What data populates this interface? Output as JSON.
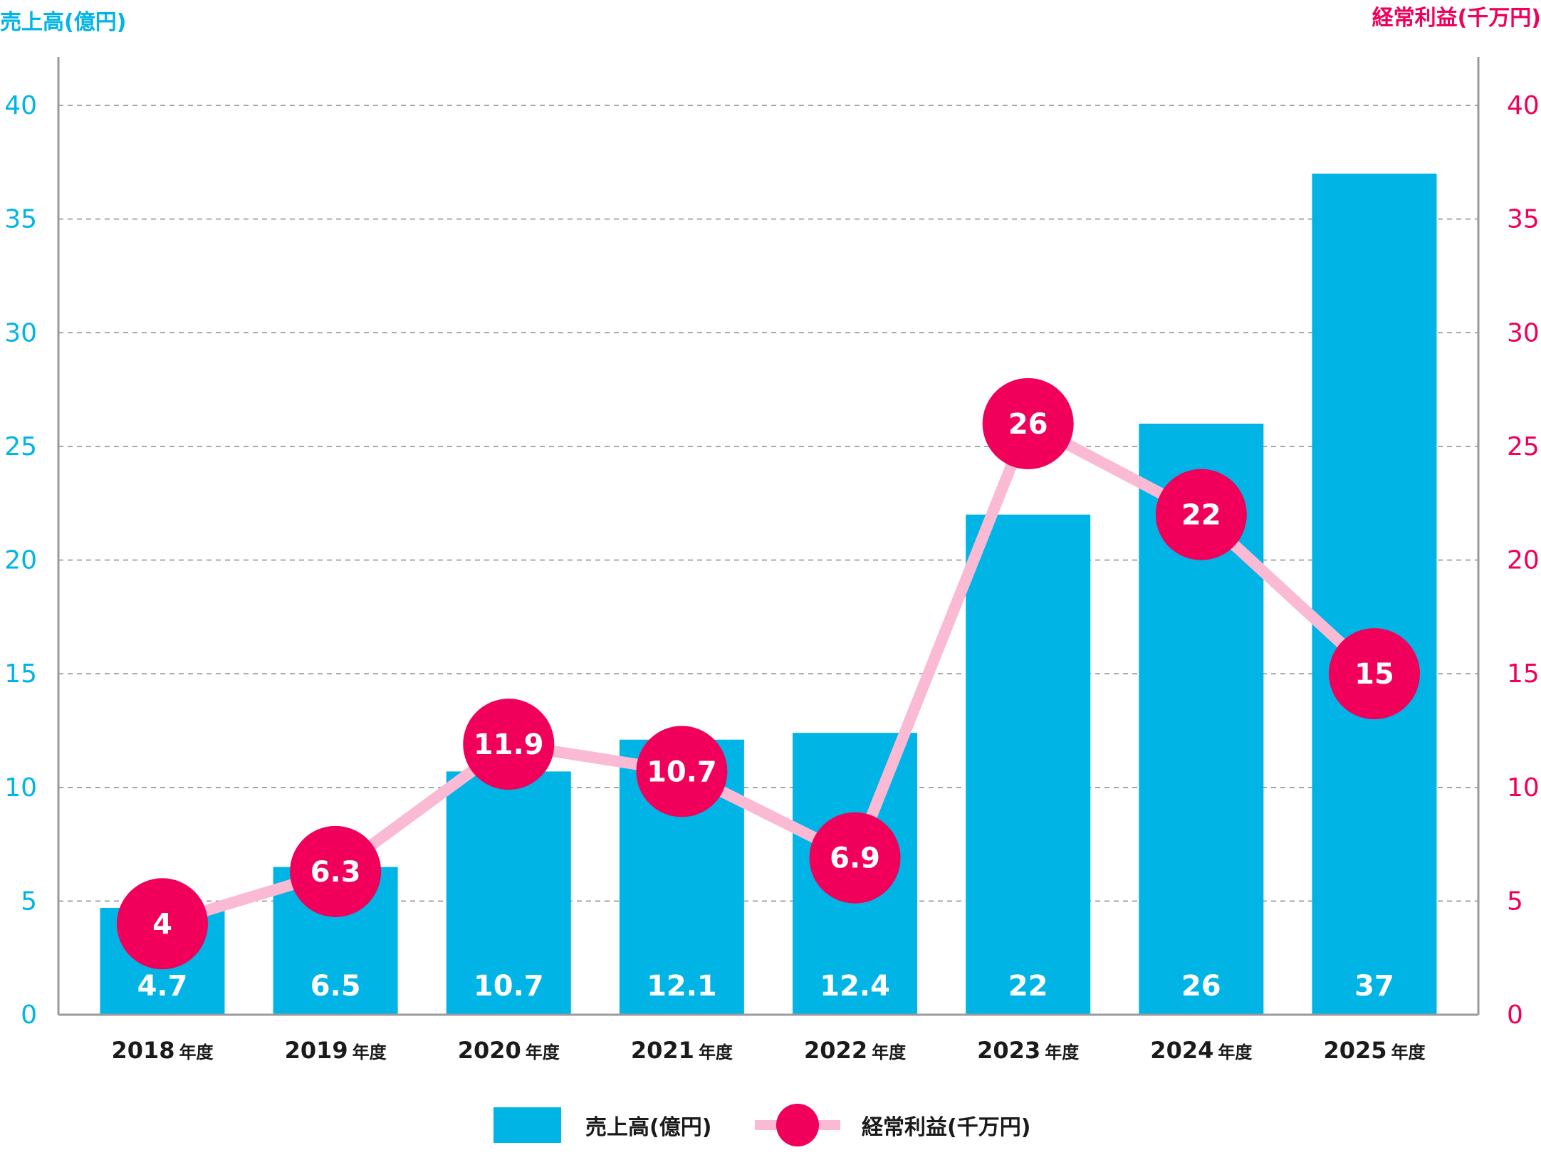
{
  "chart_data": {
    "type": "bar",
    "left_axis_title": "売上高(億円)",
    "right_axis_title": "経常利益(千万円)",
    "categories": [
      "2018",
      "2019",
      "2020",
      "2021",
      "2022",
      "2023",
      "2024",
      "2025"
    ],
    "category_suffix": "年度",
    "ylim": [
      0,
      40
    ],
    "y_ticks": [
      "0",
      "5",
      "10",
      "15",
      "20",
      "25",
      "30",
      "35",
      "40"
    ],
    "grid": true,
    "legend_placement": "bottom-center",
    "series": [
      {
        "name": "売上高(億円)",
        "type": "bar",
        "axis": "left",
        "color": "#00b5e6",
        "values": [
          4.7,
          6.5,
          10.7,
          12.1,
          12.4,
          22,
          26,
          37
        ],
        "labels": [
          "4.7",
          "6.5",
          "10.7",
          "12.1",
          "12.4",
          "22",
          "26",
          "37"
        ]
      },
      {
        "name": "経常利益(千万円)",
        "type": "line",
        "axis": "right",
        "color": "#f0005a",
        "line_color": "#fbbad3",
        "values": [
          4,
          6.3,
          11.9,
          10.7,
          6.9,
          26,
          22,
          15
        ],
        "labels": [
          "4",
          "6.3",
          "11.9",
          "10.7",
          "6.9",
          "26",
          "22",
          "15"
        ]
      }
    ]
  }
}
